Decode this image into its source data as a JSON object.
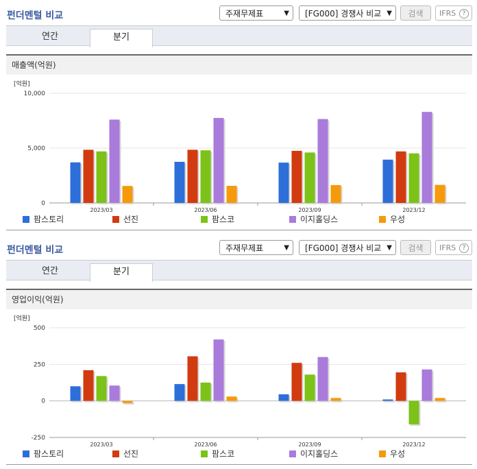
{
  "panels": [
    {
      "title": "펀더멘털 비교",
      "select1": "주재무제표",
      "select2": "[FG000] 경쟁사 비교",
      "search_label": "검색",
      "ifrs_label": "IFRS",
      "ifrs_help": "?",
      "tabs": [
        "연간",
        "분기"
      ],
      "section_title": "매출액(억원)"
    },
    {
      "title": "펀더멘털 비교",
      "select1": "주재무제표",
      "select2": "[FG000] 경쟁사 비교",
      "search_label": "검색",
      "ifrs_label": "IFRS",
      "ifrs_help": "?",
      "tabs": [
        "연간",
        "분기"
      ],
      "section_title": "영업이익(억원)"
    }
  ],
  "colors": [
    "#2d6fd9",
    "#d13b0f",
    "#7cc218",
    "#a97bdb",
    "#f59a0c"
  ],
  "chart_data": [
    {
      "type": "bar",
      "title": "매출액(억원)",
      "unit_label": "[억원]",
      "categories": [
        "2023/03",
        "2023/06",
        "2023/09",
        "2023/12"
      ],
      "ylim": [
        0,
        10000
      ],
      "yticks": [
        "10,000",
        "5,000",
        "0"
      ],
      "ytick_values": [
        10000,
        5000,
        0
      ],
      "series": [
        {
          "name": "팜스토리",
          "values": [
            3700,
            3750,
            3680,
            3950
          ]
        },
        {
          "name": "선진",
          "values": [
            4850,
            4850,
            4750,
            4700
          ]
        },
        {
          "name": "팜스코",
          "values": [
            4700,
            4800,
            4600,
            4520
          ]
        },
        {
          "name": "이지홀딩스",
          "values": [
            7600,
            7750,
            7650,
            8300
          ]
        },
        {
          "name": "우성",
          "values": [
            1550,
            1560,
            1630,
            1650
          ]
        }
      ]
    },
    {
      "type": "bar",
      "title": "영업이익(억원)",
      "unit_label": "[억원]",
      "categories": [
        "2023/03",
        "2023/06",
        "2023/09",
        "2023/12"
      ],
      "ylim": [
        -250,
        500
      ],
      "yticks": [
        "500",
        "250",
        "0",
        "-250"
      ],
      "ytick_values": [
        500,
        250,
        0,
        -250
      ],
      "series": [
        {
          "name": "팜스토리",
          "values": [
            100,
            115,
            45,
            10
          ]
        },
        {
          "name": "선진",
          "values": [
            210,
            305,
            260,
            195
          ]
        },
        {
          "name": "팜스코",
          "values": [
            170,
            125,
            180,
            -160
          ]
        },
        {
          "name": "이지홀딩스",
          "values": [
            105,
            420,
            300,
            215
          ]
        },
        {
          "name": "우성",
          "values": [
            -15,
            30,
            20,
            20
          ]
        }
      ]
    }
  ]
}
